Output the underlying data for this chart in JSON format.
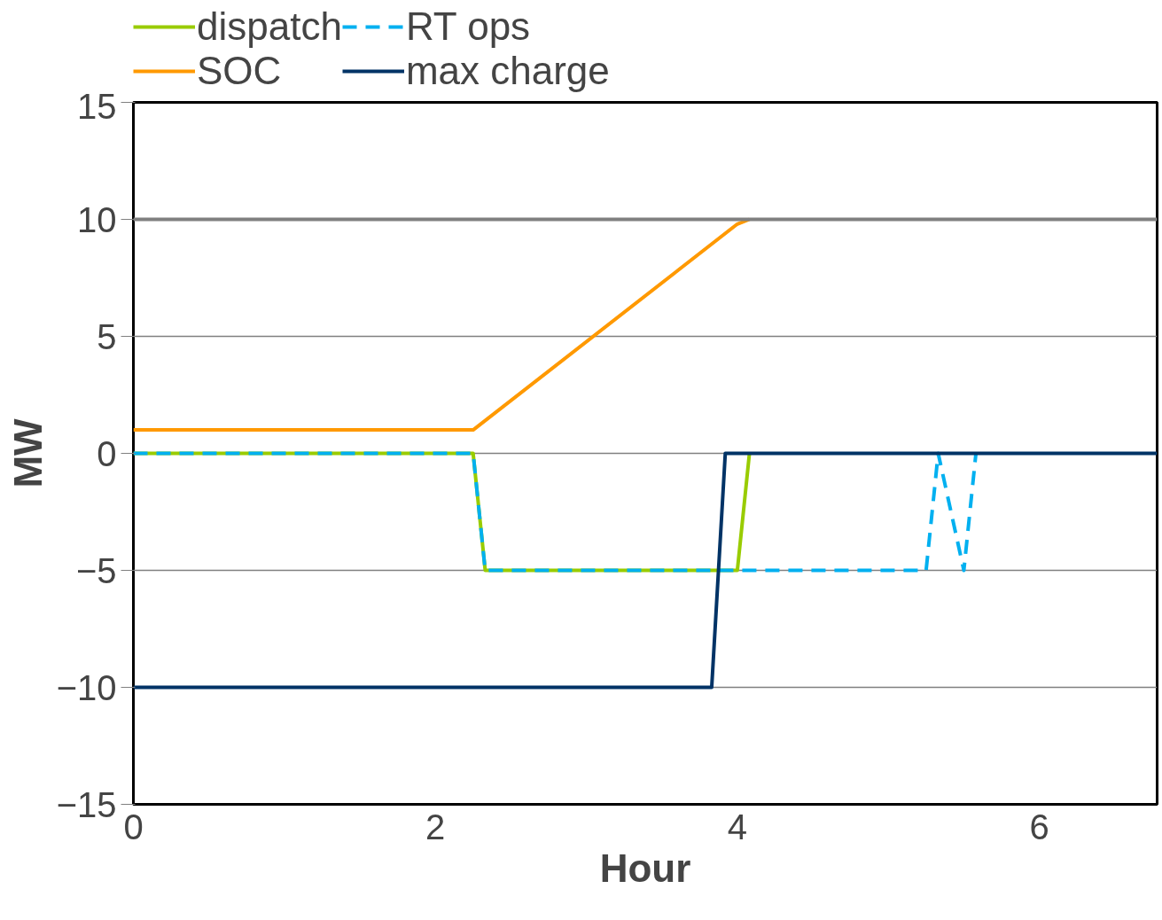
{
  "chart_data": {
    "type": "line",
    "xlabel": "Hour",
    "ylabel": "MW",
    "xlim": [
      0,
      6.78
    ],
    "ylim": [
      -15,
      15
    ],
    "xticks": [
      0,
      2,
      4,
      6
    ],
    "yticks": [
      -15,
      -10,
      -5,
      0,
      5,
      10,
      15
    ],
    "grid": "y",
    "legend": "top",
    "line_style": "solid",
    "marker": "none",
    "ref_lines": [
      {
        "axis": "y",
        "value": 10,
        "color": "#808080"
      }
    ],
    "series": [
      {
        "name": "dispatch",
        "color": "#99cc00",
        "x": [
          0,
          2.25,
          2.33,
          4.0,
          4.08
        ],
        "values": [
          0,
          0,
          -5,
          -5,
          0
        ]
      },
      {
        "name": "RT ops",
        "color": "#00b0f0",
        "line_style": "dashed",
        "x": [
          0,
          2.25,
          2.33,
          5.25,
          5.33,
          5.5,
          5.58
        ],
        "values": [
          0,
          0,
          -5,
          -5,
          0,
          -5,
          0
        ]
      },
      {
        "name": "SOC",
        "color": "#ff9900",
        "x": [
          0,
          2.25,
          4.0,
          4.08
        ],
        "values": [
          1,
          1,
          9.8,
          10
        ]
      },
      {
        "name": "max charge",
        "color": "#003366",
        "x": [
          0,
          3.83,
          3.92,
          6.78
        ],
        "values": [
          -10,
          -10,
          0,
          0
        ]
      }
    ]
  }
}
